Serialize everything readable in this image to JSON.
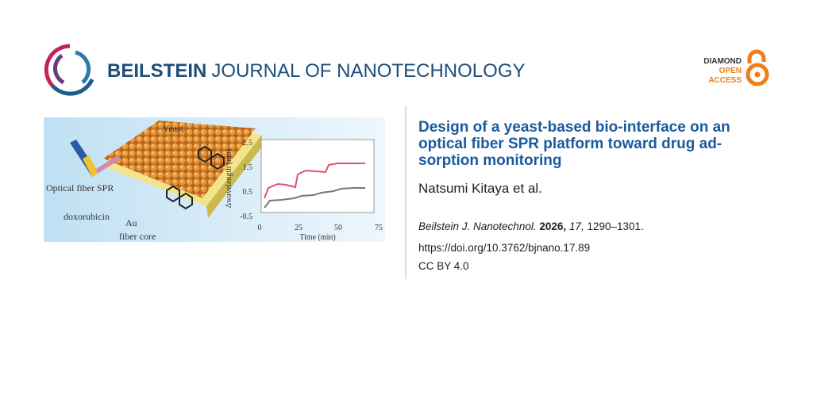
{
  "header": {
    "journal_bold": "BEILSTEIN",
    "journal_rest": "JOURNAL OF NANOTECHNOLOGY",
    "badge": [
      "DIAMOND",
      "OPEN",
      "ACCESS"
    ]
  },
  "graphical_abstract": {
    "labels": [
      "Yeast",
      "Optical fiber SPR",
      "doxorubicin",
      "Au",
      "fiber core"
    ],
    "inset": {
      "y_label": "Δwavelength (nm)",
      "x_label": "Time (min)",
      "yticks": [
        "2.5",
        "1.5",
        "0.5",
        "-0.5"
      ],
      "xticks": [
        "0",
        "25",
        "50",
        "75"
      ]
    }
  },
  "article": {
    "title_lines": [
      "Design of a yeast-based bio-interface on an",
      "optical fiber SPR platform toward drug ad-",
      "sorption monitoring"
    ],
    "authors": "Natsumi Kitaya et al.",
    "citation": {
      "journal": "Beilstein J. Nanotechnol.",
      "year": "2026,",
      "volume": "17,",
      "pages": "1290–1301."
    },
    "doi": "https://doi.org/10.3762/bjnano.17.89",
    "license": "CC BY 4.0"
  }
}
